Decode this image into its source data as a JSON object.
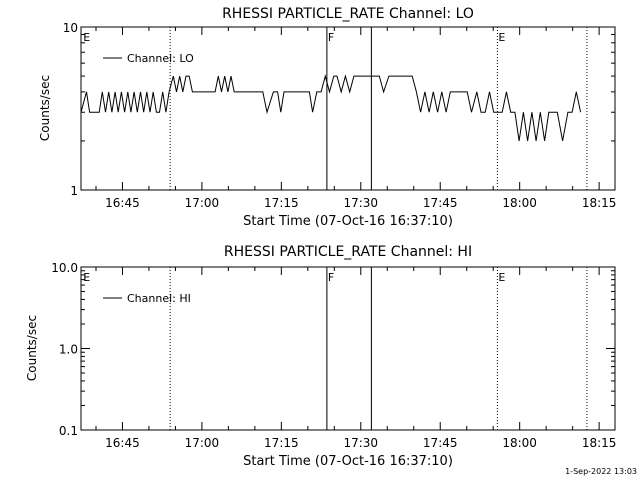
{
  "footer": {
    "timestamp": "1-Sep-2022 13:03"
  },
  "chart_data": [
    {
      "type": "line",
      "title": "RHESSI PARTICLE_RATE Channel: LO",
      "xlabel": "Start Time (07-Oct-16 16:37:10)",
      "ylabel": "Counts/sec",
      "yscale": "log",
      "ylim": [
        1,
        10
      ],
      "xlim_minutes": [
        37.17,
        138.0
      ],
      "ytick_labels": [
        {
          "value": 1,
          "label": "1"
        },
        {
          "value": 10,
          "label": "10"
        }
      ],
      "xtick_labels": [
        {
          "value": 45,
          "label": "16:45"
        },
        {
          "value": 60,
          "label": "17:00"
        },
        {
          "value": 75,
          "label": "17:15"
        },
        {
          "value": 90,
          "label": "17:30"
        },
        {
          "value": 105,
          "label": "17:45"
        },
        {
          "value": 120,
          "label": "18:00"
        },
        {
          "value": 135,
          "label": "18:15"
        }
      ],
      "legend": {
        "label": "Channel: LO",
        "placement": "top-left"
      },
      "markers": [
        {
          "x": 37.6,
          "label": "E",
          "style": "none"
        },
        {
          "x": 54.0,
          "label": "",
          "style": "dotted"
        },
        {
          "x": 83.6,
          "label": "F",
          "style": "solid"
        },
        {
          "x": 92.0,
          "label": "",
          "style": "solid"
        },
        {
          "x": 115.8,
          "label": "E",
          "style": "dotted"
        },
        {
          "x": 132.7,
          "label": "",
          "style": "dotted"
        }
      ],
      "series": [
        {
          "x": [
            37.17,
            38.2,
            38.8,
            39.4,
            40.6,
            41.2,
            41.8,
            42.4,
            43.0,
            43.6,
            44.2,
            44.8,
            45.4,
            46.0,
            46.6,
            47.2,
            47.8,
            48.4,
            49.0,
            49.6,
            50.2,
            50.8,
            51.4,
            52.0,
            52.6,
            53.2,
            53.8,
            54.6,
            55.2,
            55.8,
            56.4,
            57.0,
            57.6,
            58.2,
            58.8,
            59.4,
            60.2,
            61.5,
            62.5,
            63.1,
            63.7,
            64.3,
            64.9,
            65.5,
            66.1,
            66.7,
            67.3,
            67.9,
            68.5,
            69.1,
            69.7,
            70.5,
            71.5,
            72.3,
            73.5,
            74.3,
            74.9,
            75.5,
            76.3,
            77.3,
            78.1,
            79.5,
            80.3,
            80.9,
            81.7,
            82.5,
            83.3,
            84.1,
            84.9,
            85.5,
            86.3,
            87.1,
            87.9,
            88.7,
            89.5,
            90.3,
            91.1,
            92.7,
            93.5,
            94.3,
            95.3,
            96.1,
            96.9,
            97.7,
            98.7,
            99.7,
            100.5,
            101.3,
            102.1,
            102.9,
            103.7,
            104.5,
            105.3,
            106.1,
            106.9,
            107.7,
            108.5,
            109.3,
            110.1,
            110.9,
            111.9,
            112.7,
            113.5,
            114.3,
            115.1,
            115.9,
            116.7,
            117.5,
            118.3,
            119.1,
            119.9,
            120.7,
            121.5,
            122.3,
            123.1,
            123.9,
            124.7,
            125.5,
            126.3,
            127.1,
            128.1,
            129.1,
            129.9,
            130.7,
            131.5
          ],
          "y": [
            3,
            4,
            3,
            3,
            3,
            4,
            3,
            4,
            3,
            4,
            3,
            4,
            3,
            4,
            3,
            4,
            3,
            4,
            3,
            4,
            3,
            4,
            3,
            3,
            4,
            3,
            4,
            5,
            4,
            5,
            4,
            5,
            5,
            4,
            4,
            4,
            4,
            4,
            4,
            5,
            4,
            5,
            4,
            5,
            4,
            4,
            4,
            4,
            4,
            4,
            4,
            4,
            4,
            3,
            4,
            4,
            3,
            4,
            4,
            4,
            4,
            4,
            4,
            3,
            4,
            4,
            5,
            4,
            5,
            5,
            4,
            5,
            4,
            5,
            5,
            5,
            5,
            5,
            5,
            4,
            5,
            5,
            5,
            5,
            5,
            5,
            4,
            3,
            4,
            3,
            4,
            3,
            4,
            3,
            4,
            4,
            4,
            4,
            4,
            3,
            4,
            3,
            3,
            4,
            3,
            3,
            3,
            4,
            3,
            3,
            2,
            3,
            2,
            3,
            2,
            3,
            2,
            3,
            3,
            3,
            2,
            3,
            3,
            4,
            3
          ]
        }
      ]
    },
    {
      "type": "line",
      "title": "RHESSI PARTICLE_RATE Channel: HI",
      "xlabel": "Start Time (07-Oct-16 16:37:10)",
      "ylabel": "Counts/sec",
      "yscale": "log",
      "ylim": [
        0.1,
        10
      ],
      "xlim_minutes": [
        37.17,
        138.0
      ],
      "ytick_labels": [
        {
          "value": 0.1,
          "label": "0.1"
        },
        {
          "value": 1,
          "label": "1.0"
        },
        {
          "value": 10,
          "label": "10.0"
        }
      ],
      "xtick_labels": [
        {
          "value": 45,
          "label": "16:45"
        },
        {
          "value": 60,
          "label": "17:00"
        },
        {
          "value": 75,
          "label": "17:15"
        },
        {
          "value": 90,
          "label": "17:30"
        },
        {
          "value": 105,
          "label": "17:45"
        },
        {
          "value": 120,
          "label": "18:00"
        },
        {
          "value": 135,
          "label": "18:15"
        }
      ],
      "legend": {
        "label": "Channel: HI",
        "placement": "top-left"
      },
      "markers": [
        {
          "x": 37.6,
          "label": "E",
          "style": "none"
        },
        {
          "x": 54.0,
          "label": "",
          "style": "dotted"
        },
        {
          "x": 83.6,
          "label": "F",
          "style": "solid"
        },
        {
          "x": 92.0,
          "label": "",
          "style": "solid"
        },
        {
          "x": 115.8,
          "label": "E",
          "style": "dotted"
        },
        {
          "x": 132.7,
          "label": "",
          "style": "dotted"
        }
      ],
      "series": []
    }
  ]
}
